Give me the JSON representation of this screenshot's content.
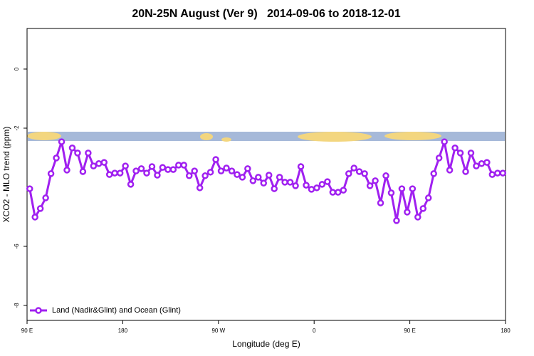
{
  "chart_data": {
    "type": "line",
    "title": "20N-25N August (Ver 9)   2014-09-06 to 2018-12-01",
    "xlabel": "Longitude (deg E)",
    "ylabel": "XCO2 - MLO trend (ppm)",
    "x": [
      92.5,
      97.5,
      102.5,
      107.5,
      112.5,
      117.5,
      122.5,
      127.5,
      132.5,
      137.5,
      142.5,
      147.5,
      152.5,
      157.5,
      162.5,
      167.5,
      172.5,
      177.5,
      182.5,
      187.5,
      192.5,
      197.5,
      202.5,
      207.5,
      212.5,
      217.5,
      222.5,
      227.5,
      232.5,
      237.5,
      242.5,
      247.5,
      252.5,
      257.5,
      262.5,
      267.5,
      272.5,
      277.5,
      282.5,
      287.5,
      292.5,
      297.5,
      302.5,
      307.5,
      312.5,
      317.5,
      322.5,
      327.5,
      332.5,
      337.5,
      342.5,
      347.5,
      352.5,
      357.5,
      362.5,
      367.5,
      372.5,
      377.5,
      382.5,
      387.5,
      392.5,
      397.5,
      402.5,
      407.5,
      412.5,
      417.5,
      422.5,
      427.5,
      432.5,
      437.5,
      442.5,
      447.5,
      452.5,
      457.5,
      462.5,
      467.5,
      472.5,
      477.5,
      482.5,
      487.5,
      492.5,
      497.5,
      502.5,
      507.5,
      512.5,
      517.5,
      522.5,
      527.5,
      532.5,
      537.5
    ],
    "series": [
      {
        "name": "Land (Nadir&Glint) and Ocean (Glint)",
        "color": "#a020f0",
        "values": [
          -4.05,
          -5.01,
          -4.72,
          -4.36,
          -3.54,
          -3.01,
          -2.46,
          -3.42,
          -2.67,
          -2.84,
          -3.47,
          -2.84,
          -3.28,
          -3.2,
          -3.16,
          -3.57,
          -3.52,
          -3.52,
          -3.28,
          -3.9,
          -3.45,
          -3.37,
          -3.52,
          -3.3,
          -3.59,
          -3.33,
          -3.4,
          -3.4,
          -3.25,
          -3.25,
          -3.61,
          -3.45,
          -4.02,
          -3.61,
          -3.49,
          -3.06,
          -3.45,
          -3.35,
          -3.45,
          -3.57,
          -3.66,
          -3.37,
          -3.78,
          -3.66,
          -3.86,
          -3.59,
          -4.05,
          -3.66,
          -3.83,
          -3.83,
          -3.95,
          -3.3,
          -3.93,
          -4.07,
          -4.02,
          -3.9,
          -3.81,
          -4.17,
          -4.17,
          -4.1,
          -3.54,
          -3.35,
          -3.47,
          -3.54,
          -3.95,
          -3.78,
          -4.53,
          -3.61,
          -4.19,
          -5.13,
          -4.05,
          -4.84,
          -4.05,
          -5.01,
          -4.72,
          -4.36,
          -3.54,
          -3.01,
          -2.46,
          -3.42,
          -2.67,
          -2.84,
          -3.47,
          -2.84,
          -3.28,
          -3.2,
          -3.16,
          -3.57,
          -3.52,
          -3.52
        ]
      }
    ],
    "xlim": [
      90,
      540
    ],
    "xticks": [
      {
        "value": 90,
        "label": "90 E"
      },
      180,
      {
        "value": 270,
        "label": "90 W"
      },
      {
        "value": 360,
        "label": "0"
      },
      {
        "value": 450,
        "label": "90 E"
      },
      {
        "value": 540,
        "label": "180"
      }
    ],
    "ylim": [
      -8.506,
      1.373
    ],
    "yticks": [
      0,
      -2,
      -6,
      -8
    ],
    "legend": "bottom-left"
  }
}
